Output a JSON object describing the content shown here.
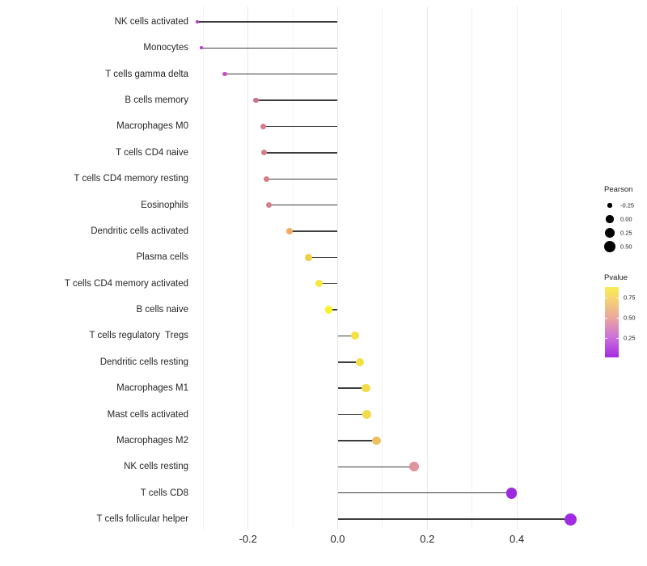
{
  "chart_data": {
    "type": "scatter",
    "variant": "horizontal-lollipop",
    "title": "",
    "xlabel": "",
    "ylabel": "",
    "grid": "major and minor vertical gridlines, very light gray, no panel border",
    "stem_color": "#3d3d3d",
    "x_axis": {
      "tick_labels": [
        "-0.2",
        "0.0",
        "0.2",
        "0.4"
      ],
      "tick_values": [
        -0.2,
        0.0,
        0.2,
        0.4
      ],
      "minor_tick_values": [
        -0.3,
        -0.1,
        0.1,
        0.3,
        0.5
      ],
      "xlim": [
        -0.33,
        0.56
      ]
    },
    "encoding": {
      "x": "Pearson correlation (stem from 0 to value)",
      "size": "Pearson",
      "color": "Pvalue"
    },
    "rows": [
      {
        "label": "NK cells activated",
        "pearson": -0.313,
        "dot_color": "#b43ac6"
      },
      {
        "label": "Monocytes",
        "pearson": -0.304,
        "dot_color": "#b23ac8"
      },
      {
        "label": "T cells gamma delta",
        "pearson": -0.252,
        "dot_color": "#c155c5"
      },
      {
        "label": "B cells memory",
        "pearson": -0.182,
        "dot_color": "#ce6f8e"
      },
      {
        "label": "Macrophages M0",
        "pearson": -0.166,
        "dot_color": "#d67a8c"
      },
      {
        "label": "T cells CD4 naive",
        "pearson": -0.164,
        "dot_color": "#d67c8b"
      },
      {
        "label": "T cells CD4 memory resting",
        "pearson": -0.159,
        "dot_color": "#d67d8b"
      },
      {
        "label": "Eosinophils",
        "pearson": -0.154,
        "dot_color": "#d8808a"
      },
      {
        "label": "Dendritic cells activated",
        "pearson": -0.107,
        "dot_color": "#efac62"
      },
      {
        "label": "Plasma cells",
        "pearson": -0.065,
        "dot_color": "#f0d04b"
      },
      {
        "label": "T cells CD4 memory activated",
        "pearson": -0.042,
        "dot_color": "#f5e83c"
      },
      {
        "label": "B cells naive",
        "pearson": -0.02,
        "dot_color": "#f9f12b"
      },
      {
        "label": "T cells regulatory  Tregs",
        "pearson": 0.038,
        "dot_color": "#f4e03f"
      },
      {
        "label": "Dendritic cells resting",
        "pearson": 0.05,
        "dot_color": "#f4df43"
      },
      {
        "label": "Macrophages M1",
        "pearson": 0.063,
        "dot_color": "#f2db49"
      },
      {
        "label": "Mast cells activated",
        "pearson": 0.065,
        "dot_color": "#f2db49"
      },
      {
        "label": "Macrophages M2",
        "pearson": 0.087,
        "dot_color": "#edc05f"
      },
      {
        "label": "NK cells resting",
        "pearson": 0.171,
        "dot_color": "#e1939e"
      },
      {
        "label": "T cells CD8",
        "pearson": 0.388,
        "dot_color": "#9d2bde"
      },
      {
        "label": "T cells follicular helper",
        "pearson": 0.52,
        "dot_color": "#a02be2"
      }
    ],
    "legend_size": {
      "title": "Pearson",
      "labels": [
        "-0.25",
        "0.00",
        "0.25",
        "0.50"
      ],
      "values": [
        -0.25,
        0.0,
        0.25,
        0.5
      ],
      "dot_color": "#000000"
    },
    "legend_color": {
      "title": "Pvalue",
      "tick_labels": [
        "0.75",
        "0.50",
        "0.25"
      ],
      "tick_values": [
        0.75,
        0.5,
        0.25
      ],
      "gradient_top_color": "#f9ee52",
      "gradient_mid_colors": [
        "#f7d76f",
        "#e9a79e",
        "#cc6fdc"
      ],
      "gradient_bottom_color": "#a32be0"
    }
  }
}
